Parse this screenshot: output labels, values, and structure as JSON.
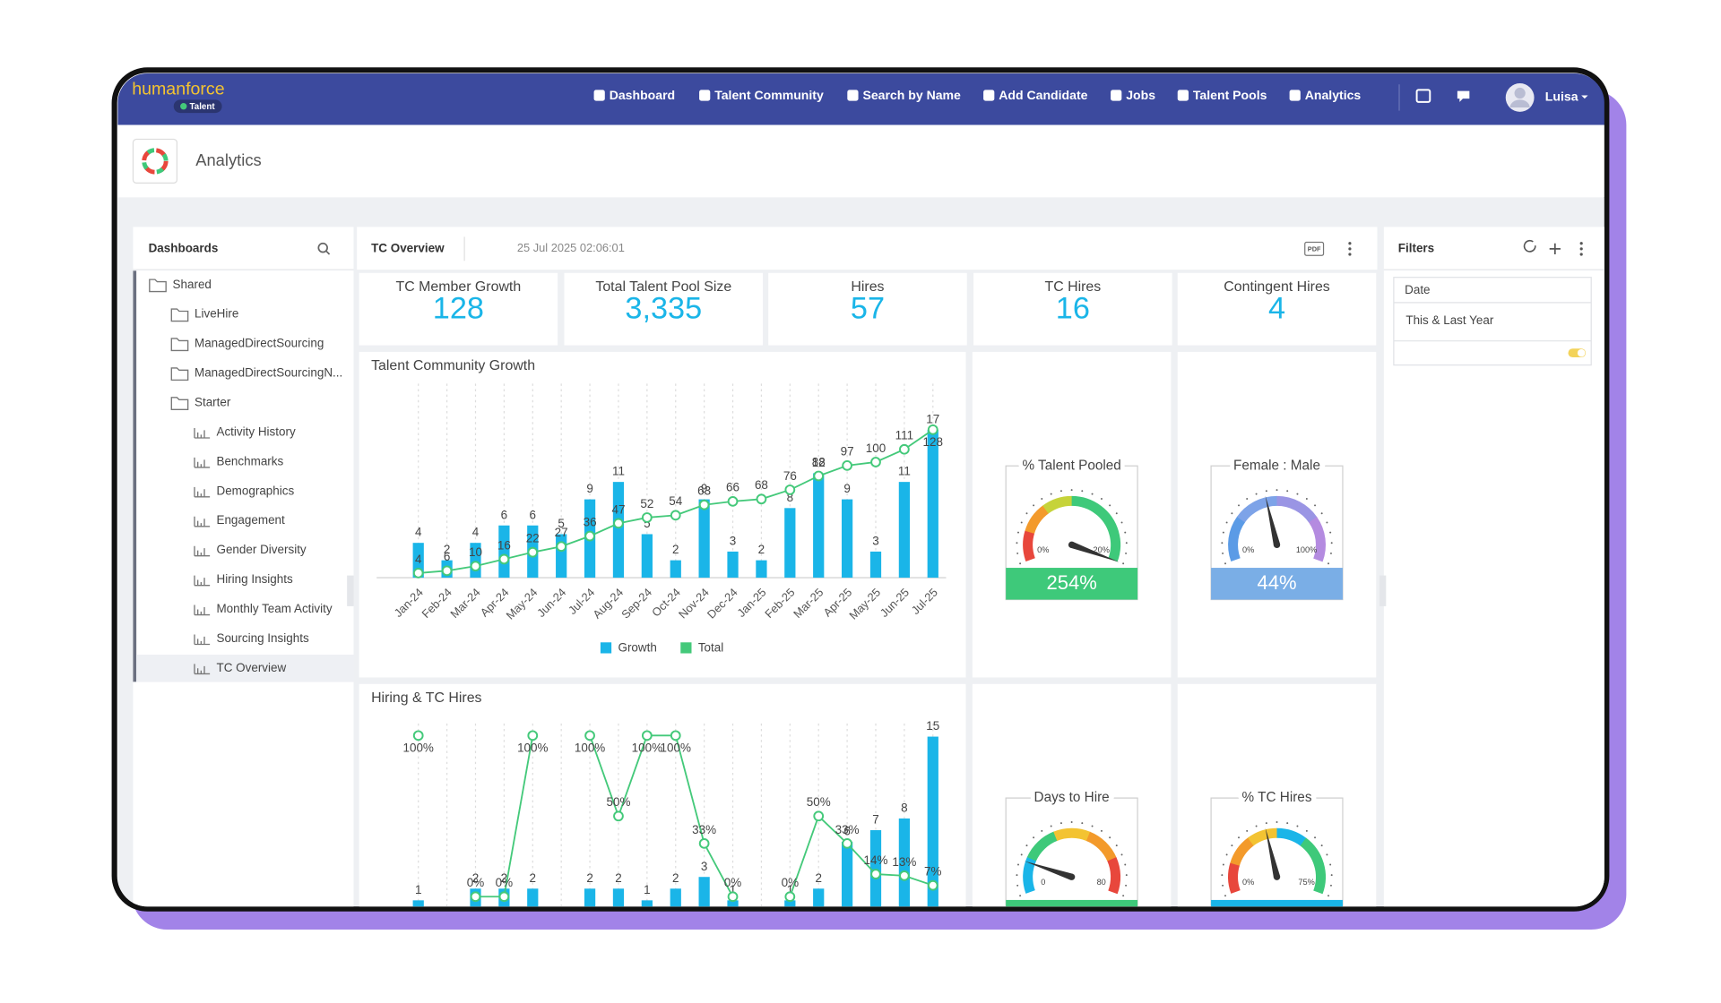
{
  "nav": {
    "brand": "humanforce",
    "product": "Talent",
    "items": [
      "Dashboard",
      "Talent Community",
      "Search by Name",
      "Add Candidate",
      "Jobs",
      "Talent Pools",
      "Analytics"
    ],
    "user": "Luisa"
  },
  "header": {
    "title": "Analytics"
  },
  "sidebar": {
    "title": "Dashboards",
    "root": {
      "name": "Shared",
      "folders": [
        {
          "name": "LiveHire"
        },
        {
          "name": "ManagedDirectSourcing"
        },
        {
          "name": "ManagedDirectSourcingN..."
        },
        {
          "name": "Starter",
          "items": [
            "Activity History",
            "Benchmarks",
            "Demographics",
            "Engagement",
            "Gender Diversity",
            "Hiring Insights",
            "Monthly Team Activity",
            "Sourcing Insights",
            "TC Overview"
          ],
          "selected_item": 8
        }
      ]
    }
  },
  "dashboard": {
    "title": "TC Overview",
    "timestamp": "25 Jul 2025 02:06:01",
    "export": "PDF"
  },
  "filters": {
    "title": "Filters",
    "field": "Date",
    "value": "This & Last Year"
  },
  "kpis": [
    {
      "label": "TC Member Growth",
      "value": 128
    },
    {
      "label": "Total Talent Pool Size",
      "value": 3335,
      "value_label": "3,335"
    },
    {
      "label": "Hires",
      "value": 57
    },
    {
      "label": "TC Hires",
      "value": 16
    },
    {
      "label": "Contingent Hires",
      "value": 4
    }
  ],
  "charts": [
    {
      "type": "bar_line",
      "title": "Talent Community Growth",
      "categories": [
        "Jan-24",
        "Feb-24",
        "Mar-24",
        "Apr-24",
        "May-24",
        "Jun-24",
        "Jul-24",
        "Aug-24",
        "Sep-24",
        "Oct-24",
        "Nov-24",
        "Dec-24",
        "Jan-25",
        "Feb-25",
        "Mar-25",
        "Apr-25",
        "May-25",
        "Jun-25",
        "Jul-25"
      ],
      "series": [
        {
          "name": "Growth",
          "type": "bar",
          "color": "#1ab5e8",
          "values": [
            4,
            2,
            4,
            6,
            6,
            5,
            9,
            11,
            5,
            2,
            9,
            3,
            2,
            8,
            12,
            9,
            3,
            11,
            17
          ]
        },
        {
          "name": "Total",
          "type": "line",
          "color": "#44c97a",
          "values": [
            4,
            6,
            10,
            16,
            22,
            27,
            36,
            47,
            52,
            54,
            63,
            66,
            68,
            76,
            88,
            97,
            100,
            111,
            128
          ]
        }
      ],
      "legend": true,
      "grid": true
    },
    {
      "type": "bar_line",
      "title": "Hiring & TC Hires",
      "series": [
        {
          "type": "bar",
          "color": "#1ab5e8",
          "values": [
            1,
            null,
            2,
            2,
            2,
            null,
            2,
            2,
            1,
            2,
            3,
            1,
            null,
            1,
            2,
            6,
            7,
            8,
            15
          ]
        },
        {
          "type": "line",
          "color": "#44c97a",
          "values": [
            100,
            null,
            0,
            0,
            100,
            null,
            100,
            50,
            100,
            100,
            33,
            0,
            null,
            0,
            50,
            33,
            14,
            13,
            7
          ],
          "value_labels": [
            "100%",
            null,
            "0%",
            "0%",
            "100%",
            null,
            "100%",
            "50%",
            "100%",
            "100%",
            "33%",
            "0%",
            null,
            "0%",
            "50%",
            "33%",
            "14%",
            "13%",
            "7%"
          ]
        }
      ],
      "grid": true
    }
  ],
  "gauges": [
    {
      "title": "% Talent Pooled",
      "value": 254,
      "value_label": "254%",
      "scale": [
        {
          "value": 0,
          "label": "0%"
        },
        {
          "value": 20,
          "label": "20%"
        }
      ],
      "colors": [
        "#e8473c",
        "#f39a2b",
        "#c6d33a",
        "#3ec97a",
        "#3ec97a",
        "#3ec97a"
      ],
      "bar_color": "#3ec97a"
    },
    {
      "title": "Female : Male",
      "value": 44,
      "value_label": "44%",
      "scale": [
        {
          "value": 0,
          "label": "0%"
        },
        {
          "value": 100,
          "label": "100%"
        }
      ],
      "colors": [
        "#5b9be6",
        "#7da3e8",
        "#9a95e4",
        "#b48be0"
      ],
      "bar_color": "#7aaee6"
    },
    {
      "title": "Days to Hire",
      "value": 14,
      "scale": [
        0,
        80
      ],
      "colors": [
        "#1ab5e8",
        "#3ec97a",
        "#f3c332",
        "#f39a2b",
        "#e8473c"
      ],
      "bar_color": "#3ec97a"
    },
    {
      "title": "% TC Hires",
      "value": 33,
      "scale": [
        {
          "value": 0,
          "label": "0%"
        },
        {
          "value": 75,
          "label": "75%"
        }
      ],
      "colors": [
        "#e8473c",
        "#f39a2b",
        "#f3c332",
        "#1ab5e8",
        "#3ec97a",
        "#3ec97a"
      ],
      "bar_color": "#1ab5e8"
    }
  ]
}
